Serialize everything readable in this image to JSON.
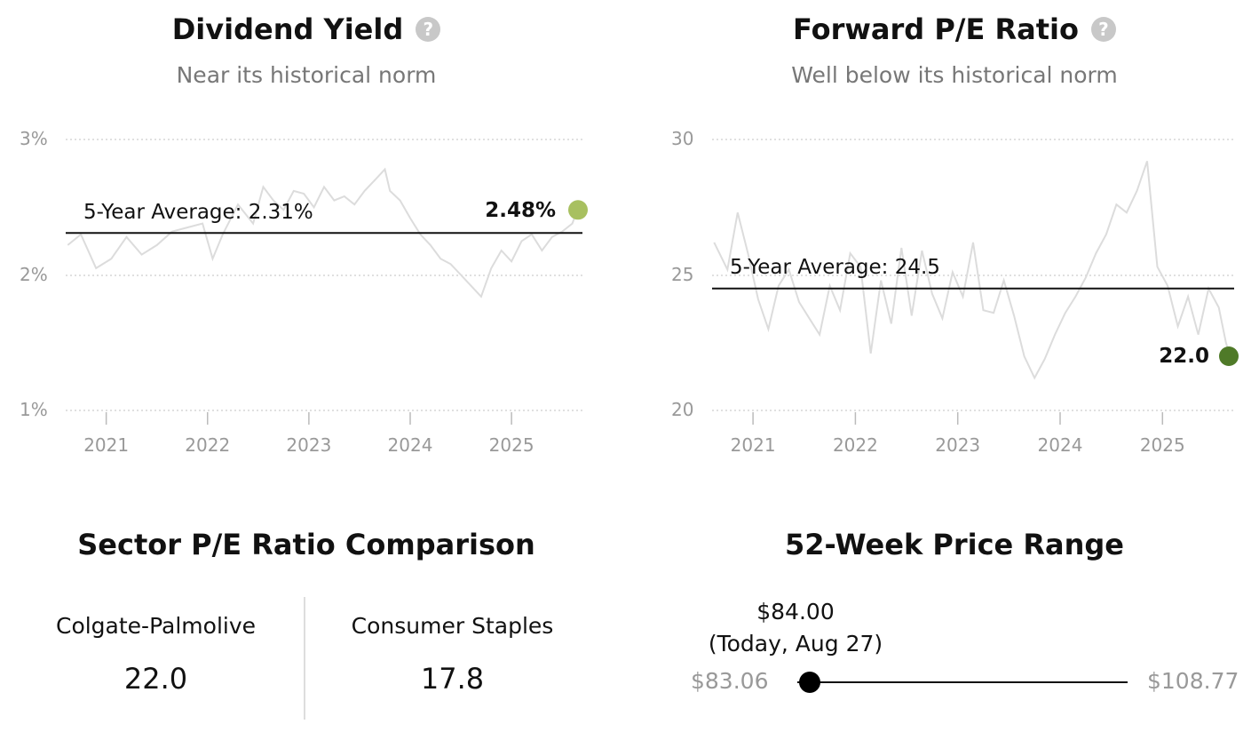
{
  "dividend": {
    "title": "Dividend Yield",
    "subtitle": "Near its historical norm",
    "average_label": "5-Year Average: 2.31%",
    "current_label": "2.48%",
    "current_color": "#a8c060"
  },
  "pe": {
    "title": "Forward P/E Ratio",
    "subtitle": "Well below its historical norm",
    "average_label": "5-Year Average: 24.5",
    "current_label": "22.0",
    "current_color": "#4f7a28"
  },
  "sector": {
    "title": "Sector P/E Ratio Comparison",
    "company_name": "Colgate-Palmolive",
    "company_value": "22.0",
    "sector_name": "Consumer Staples",
    "sector_value": "17.8"
  },
  "range": {
    "title": "52-Week Price Range",
    "low": "$83.06",
    "high": "$108.77",
    "current_price": "$84.00",
    "current_date": "(Today, Aug 27)",
    "position_fraction": 0.037
  },
  "chart_data": [
    {
      "type": "line",
      "title": "Dividend Yield",
      "x_ticks": [
        "2021",
        "2022",
        "2023",
        "2024",
        "2025"
      ],
      "y_ticks": [
        "3%",
        "2%",
        "1%"
      ],
      "ylim": [
        1,
        3
      ],
      "xlim": [
        2020.6,
        2025.7
      ],
      "average": 2.31,
      "current": 2.48,
      "grid": true,
      "series": [
        {
          "x": [
            2020.62,
            2020.75,
            2020.9,
            2021.05,
            2021.2,
            2021.35,
            2021.5,
            2021.65,
            2021.8,
            2021.95,
            2022.05,
            2022.15,
            2022.3,
            2022.45,
            2022.55,
            2022.65,
            2022.75,
            2022.85,
            2022.95,
            2023.05,
            2023.15,
            2023.25,
            2023.35,
            2023.45,
            2023.55,
            2023.65,
            2023.75,
            2023.8,
            2023.9,
            2024.0,
            2024.1,
            2024.2,
            2024.3,
            2024.4,
            2024.5,
            2024.6,
            2024.7,
            2024.8,
            2024.9,
            2025.0,
            2025.1,
            2025.2,
            2025.3,
            2025.4,
            2025.5,
            2025.6,
            2025.65
          ],
          "values": [
            2.22,
            2.3,
            2.05,
            2.12,
            2.28,
            2.15,
            2.22,
            2.32,
            2.35,
            2.38,
            2.12,
            2.3,
            2.52,
            2.38,
            2.65,
            2.55,
            2.48,
            2.62,
            2.6,
            2.5,
            2.65,
            2.55,
            2.58,
            2.52,
            2.62,
            2.7,
            2.78,
            2.62,
            2.55,
            2.42,
            2.3,
            2.22,
            2.12,
            2.08,
            2.0,
            1.92,
            1.84,
            2.05,
            2.18,
            2.1,
            2.25,
            2.3,
            2.18,
            2.28,
            2.32,
            2.38,
            2.48
          ]
        }
      ]
    },
    {
      "type": "line",
      "title": "Forward P/E Ratio",
      "x_ticks": [
        "2021",
        "2022",
        "2023",
        "2024",
        "2025"
      ],
      "y_ticks": [
        "30",
        "25",
        "20"
      ],
      "ylim": [
        20,
        30
      ],
      "xlim": [
        2020.6,
        2025.7
      ],
      "average": 24.5,
      "current": 22.0,
      "grid": true,
      "series": [
        {
          "x": [
            2020.62,
            2020.75,
            2020.85,
            2020.95,
            2021.05,
            2021.15,
            2021.25,
            2021.35,
            2021.45,
            2021.55,
            2021.65,
            2021.75,
            2021.85,
            2021.95,
            2022.05,
            2022.15,
            2022.25,
            2022.35,
            2022.45,
            2022.55,
            2022.65,
            2022.75,
            2022.85,
            2022.95,
            2023.05,
            2023.15,
            2023.25,
            2023.35,
            2023.45,
            2023.55,
            2023.65,
            2023.75,
            2023.85,
            2023.95,
            2024.05,
            2024.15,
            2024.25,
            2024.35,
            2024.45,
            2024.55,
            2024.65,
            2024.75,
            2024.85,
            2024.95,
            2025.05,
            2025.15,
            2025.25,
            2025.35,
            2025.45,
            2025.55,
            2025.62,
            2025.66
          ],
          "values": [
            26.2,
            25.2,
            27.3,
            25.8,
            24.1,
            23.0,
            24.6,
            25.2,
            24.0,
            23.4,
            22.8,
            24.6,
            23.7,
            25.8,
            25.3,
            22.1,
            24.8,
            23.2,
            26.0,
            23.5,
            25.9,
            24.3,
            23.4,
            25.1,
            24.2,
            26.2,
            23.7,
            23.6,
            24.8,
            23.5,
            22.0,
            21.2,
            21.9,
            22.8,
            23.6,
            24.2,
            24.9,
            25.8,
            26.5,
            27.6,
            27.3,
            28.1,
            29.2,
            25.3,
            24.6,
            23.1,
            24.2,
            22.8,
            24.5,
            23.8,
            22.5,
            22.0
          ]
        }
      ]
    }
  ]
}
